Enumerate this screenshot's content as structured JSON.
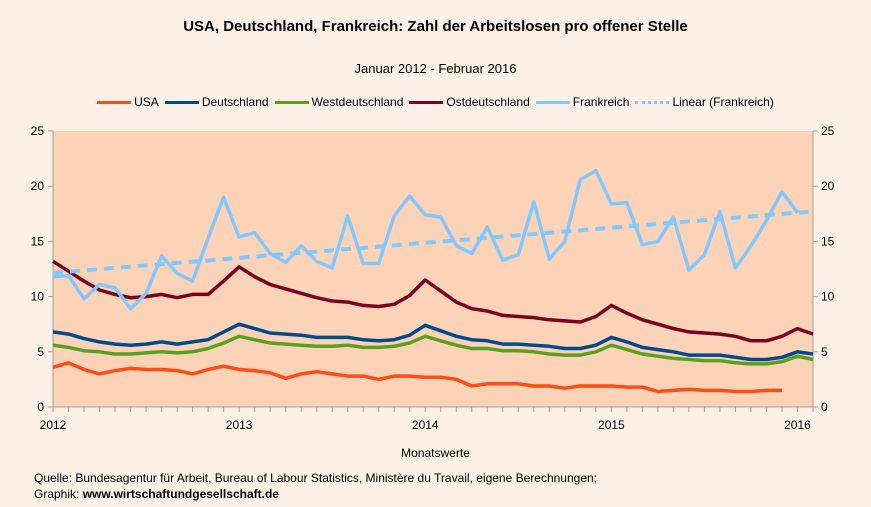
{
  "chart_data": {
    "type": "line",
    "title": "USA, Deutschland, Frankreich: Zahl der Arbeitslosen pro offener Stelle",
    "subtitle": "Januar 2012 - Februar 2016",
    "xlabel": "Monatswerte",
    "ylabel": "",
    "x_start": "2012-01",
    "x_end": "2016-02",
    "x_tick_labels": [
      "2012",
      "2013",
      "2014",
      "2015",
      "2016"
    ],
    "ylim": [
      0,
      25
    ],
    "y_ticks": [
      0,
      5,
      10,
      15,
      20,
      25
    ],
    "y_axis_both_sides": true,
    "grid": false,
    "legend_position": "top",
    "series": [
      {
        "name": "USA",
        "color": "#ff4d14",
        "values": [
          3.6,
          4.0,
          3.4,
          3.0,
          3.3,
          3.5,
          3.4,
          3.4,
          3.3,
          3.0,
          3.4,
          3.7,
          3.4,
          3.3,
          3.1,
          2.6,
          3.0,
          3.2,
          3.0,
          2.8,
          2.8,
          2.5,
          2.8,
          2.8,
          2.7,
          2.7,
          2.5,
          1.9,
          2.1,
          2.1,
          2.1,
          1.9,
          1.9,
          1.7,
          1.9,
          1.9,
          1.9,
          1.8,
          1.8,
          1.4,
          1.5,
          1.6,
          1.5,
          1.5,
          1.4,
          1.4,
          1.5,
          1.5
        ]
      },
      {
        "name": "Deutschland",
        "color": "#004a8c",
        "values": [
          6.8,
          6.6,
          6.2,
          5.9,
          5.7,
          5.6,
          5.7,
          5.9,
          5.7,
          5.9,
          6.1,
          6.8,
          7.5,
          7.1,
          6.7,
          6.6,
          6.5,
          6.3,
          6.3,
          6.3,
          6.1,
          6.0,
          6.1,
          6.5,
          7.4,
          6.9,
          6.4,
          6.1,
          6.0,
          5.7,
          5.7,
          5.6,
          5.5,
          5.3,
          5.3,
          5.6,
          6.3,
          5.9,
          5.4,
          5.2,
          5.0,
          4.7,
          4.7,
          4.7,
          4.5,
          4.3,
          4.3,
          4.5,
          5.0,
          4.8
        ]
      },
      {
        "name": "Westdeutschland",
        "color": "#5aa01e",
        "values": [
          5.6,
          5.4,
          5.1,
          5.0,
          4.8,
          4.8,
          4.9,
          5.0,
          4.9,
          5.0,
          5.3,
          5.8,
          6.4,
          6.1,
          5.8,
          5.7,
          5.6,
          5.5,
          5.5,
          5.6,
          5.4,
          5.4,
          5.5,
          5.8,
          6.4,
          6.0,
          5.6,
          5.3,
          5.3,
          5.1,
          5.1,
          5.0,
          4.8,
          4.7,
          4.7,
          5.0,
          5.6,
          5.2,
          4.8,
          4.6,
          4.4,
          4.3,
          4.2,
          4.2,
          4.0,
          3.9,
          3.9,
          4.1,
          4.6,
          4.3
        ]
      },
      {
        "name": "Ostdeutschland",
        "color": "#7a0022",
        "values": [
          13.2,
          12.3,
          11.4,
          10.6,
          10.2,
          9.9,
          10.0,
          10.2,
          9.9,
          10.2,
          10.2,
          11.4,
          12.7,
          11.8,
          11.1,
          10.7,
          10.3,
          9.9,
          9.6,
          9.5,
          9.2,
          9.1,
          9.3,
          10.1,
          11.5,
          10.5,
          9.5,
          8.9,
          8.7,
          8.3,
          8.2,
          8.1,
          7.9,
          7.8,
          7.7,
          8.2,
          9.2,
          8.5,
          7.9,
          7.5,
          7.1,
          6.8,
          6.7,
          6.6,
          6.4,
          6.0,
          6.0,
          6.4,
          7.1,
          6.6
        ]
      },
      {
        "name": "Frankreich",
        "color": "#80c8ff",
        "values": [
          11.8,
          11.9,
          9.8,
          11.1,
          10.8,
          8.9,
          10.3,
          13.7,
          12.1,
          11.4,
          15.3,
          19.0,
          15.4,
          15.8,
          13.9,
          13.1,
          14.6,
          13.2,
          12.6,
          17.3,
          13.0,
          13.0,
          17.3,
          19.1,
          17.4,
          17.2,
          14.6,
          13.9,
          16.3,
          13.3,
          13.8,
          18.6,
          13.4,
          15.0,
          20.6,
          21.4,
          18.4,
          18.5,
          14.7,
          15.0,
          17.2,
          12.4,
          13.8,
          17.7,
          12.6,
          14.6,
          16.9,
          19.5,
          17.6
        ]
      },
      {
        "name": "Linear (Frankreich)",
        "color": "#80c8ff",
        "trendline_of": "Frankreich",
        "dashed": true
      }
    ]
  },
  "footer": {
    "source": "Quelle: Bundesagentur für Arbeit, Bureau of Labour Statistics, Ministère du Travail, eigene Berechnungen;",
    "graphic_label": "Graphik: ",
    "graphic_url": "www.wirtschaftundgesellschaft.de"
  },
  "colors": {
    "background": "#fdf0e6",
    "plot_background": "#fdd3b8",
    "axis": "#a0a0a0"
  }
}
